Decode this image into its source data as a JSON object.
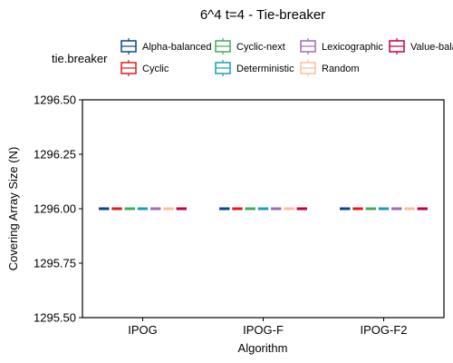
{
  "chart_data": {
    "type": "boxplot",
    "title": "6^4 t=4 - Tie-breaker",
    "xlabel": "Algorithm",
    "ylabel": "Covering Array Size (N)",
    "legend_title": "tie.breaker",
    "legend_position": "top",
    "categories": [
      "IPOG",
      "IPOG-F",
      "IPOG-F2"
    ],
    "ylim": [
      1295.5,
      1296.5
    ],
    "yticks": [
      "1295.50",
      "1295.75",
      "1296.00",
      "1296.25",
      "1296.50"
    ],
    "ytick_values": [
      1295.5,
      1295.75,
      1296.0,
      1296.25,
      1296.5
    ],
    "grid": false,
    "series": [
      {
        "name": "Alpha-balanced",
        "color": "#084594",
        "values": [
          1296,
          1296,
          1296
        ]
      },
      {
        "name": "Cyclic",
        "color": "#e31a1c",
        "values": [
          1296,
          1296,
          1296
        ]
      },
      {
        "name": "Cyclic-next",
        "color": "#41ab5d",
        "values": [
          1296,
          1296,
          1296
        ]
      },
      {
        "name": "Deterministic",
        "color": "#1a9fb5",
        "values": [
          1296,
          1296,
          1296
        ]
      },
      {
        "name": "Lexicographic",
        "color": "#9a6fb0",
        "values": [
          1296,
          1296,
          1296
        ]
      },
      {
        "name": "Random",
        "color": "#fdbf9a",
        "values": [
          1296,
          1296,
          1296
        ]
      },
      {
        "name": "Value-balanced",
        "color": "#c2003f",
        "values": [
          1296,
          1296,
          1296
        ]
      }
    ]
  }
}
